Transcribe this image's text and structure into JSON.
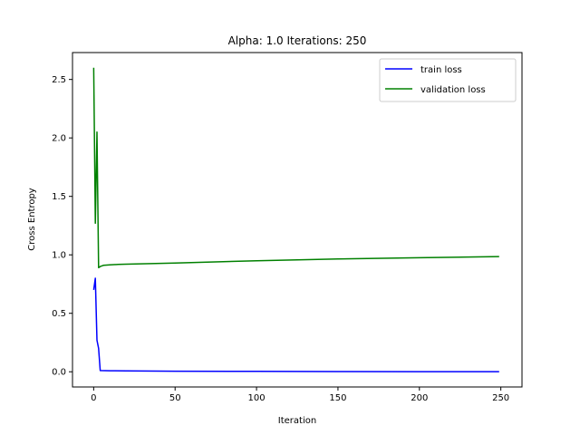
{
  "chart_data": {
    "type": "line",
    "title": "Alpha: 1.0 Iterations: 250",
    "xlabel": "Iteration",
    "ylabel": "Cross Entropy",
    "xlim": [
      -13,
      263
    ],
    "ylim": [
      -0.13,
      2.73
    ],
    "xticks": [
      0,
      50,
      100,
      150,
      200,
      250
    ],
    "yticks": [
      0.0,
      0.5,
      1.0,
      1.5,
      2.0,
      2.5
    ],
    "ytick_labels": [
      "0.0",
      "0.5",
      "1.0",
      "1.5",
      "2.0",
      "2.5"
    ],
    "grid": false,
    "legend_position": "top-right",
    "series": [
      {
        "name": "train loss",
        "color": "#0000ff",
        "x": [
          0,
          1,
          2,
          3,
          4,
          10,
          20,
          50,
          100,
          150,
          200,
          249
        ],
        "y": [
          0.7,
          0.8,
          0.27,
          0.2,
          0.01,
          0.009,
          0.008,
          0.005,
          0.003,
          0.002,
          0.001,
          0.001
        ]
      },
      {
        "name": "validation loss",
        "color": "#008000",
        "x": [
          0,
          1,
          2,
          3,
          4,
          6,
          10,
          15,
          20,
          50,
          100,
          150,
          200,
          249
        ],
        "y": [
          2.6,
          1.27,
          2.05,
          0.89,
          0.9,
          0.91,
          0.915,
          0.918,
          0.92,
          0.93,
          0.95,
          0.965,
          0.975,
          0.985
        ]
      }
    ]
  }
}
